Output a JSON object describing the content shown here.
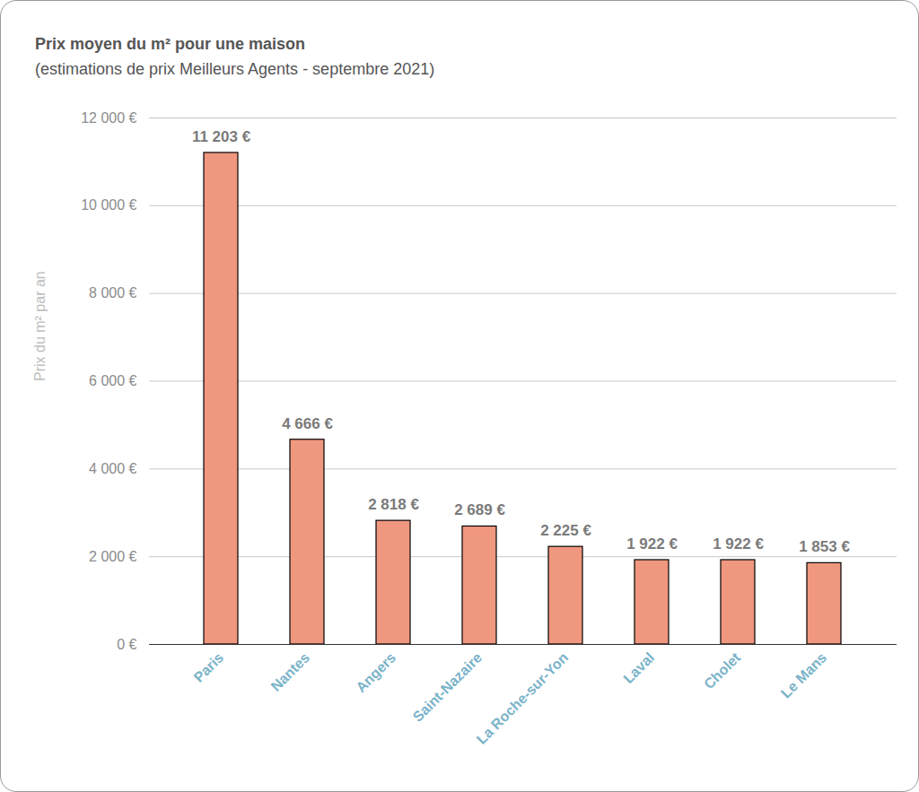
{
  "chart_data": {
    "type": "bar",
    "title": "Prix moyen du m² pour une maison",
    "subtitle": "(estimations de prix Meilleurs Agents - septembre 2021)",
    "y_label": "Prix du m² par an",
    "categories": [
      "Paris",
      "Nantes",
      "Angers",
      "Saint-Nazaire",
      "La Roche-sur-Yon",
      "Laval",
      "Cholet",
      "Le Mans"
    ],
    "values": [
      11203,
      4666,
      2818,
      2689,
      2225,
      1922,
      1922,
      1853
    ],
    "value_labels": [
      "11 203 €",
      "4 666 €",
      "2 818 €",
      "2 689 €",
      "2 225 €",
      "1 922 €",
      "1 922 €",
      "1 853 €"
    ],
    "color": "#f0977f",
    "ylim": [
      0,
      12000
    ],
    "yticks": [
      {
        "value": 0,
        "label": "0 €"
      },
      {
        "value": 2000,
        "label": "2 000 €"
      },
      {
        "value": 4000,
        "label": "4 000 €"
      },
      {
        "value": 6000,
        "label": "6 000 €"
      },
      {
        "value": 8000,
        "label": "8 000 €"
      },
      {
        "value": 10000,
        "label": "10 000 €"
      },
      {
        "value": 12000,
        "label": "12 000 €"
      }
    ],
    "grid": true,
    "data_labels": true
  }
}
